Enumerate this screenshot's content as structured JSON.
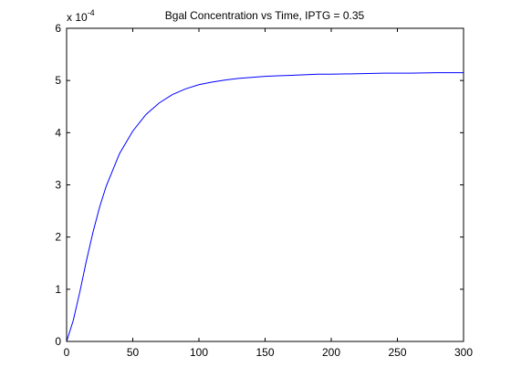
{
  "chart_data": {
    "type": "line",
    "title": "Bgal Concentration vs Time, IPTG = 0.35",
    "xlabel": "",
    "ylabel": "",
    "xlim": [
      0,
      300
    ],
    "ylim": [
      0,
      6
    ],
    "y_exponent_prefix": "x 10",
    "y_exponent": "-4",
    "xticks": [
      0,
      50,
      100,
      150,
      200,
      250,
      300
    ],
    "yticks": [
      0,
      1,
      2,
      3,
      4,
      5,
      6
    ],
    "xtick_labels": [
      "0",
      "50",
      "100",
      "150",
      "200",
      "250",
      "300"
    ],
    "ytick_labels": [
      "0",
      "1",
      "2",
      "3",
      "4",
      "5",
      "6"
    ],
    "grid": false,
    "legend": "none",
    "series": [
      {
        "color": "#0000ff",
        "x": [
          0,
          5,
          10,
          15,
          20,
          25,
          30,
          40,
          50,
          60,
          70,
          80,
          90,
          100,
          110,
          120,
          130,
          140,
          150,
          160,
          170,
          180,
          190,
          200,
          220,
          240,
          260,
          280,
          300
        ],
        "y": [
          0,
          0.4,
          0.95,
          1.55,
          2.1,
          2.58,
          2.98,
          3.6,
          4.03,
          4.35,
          4.57,
          4.73,
          4.84,
          4.92,
          4.97,
          5.01,
          5.04,
          5.06,
          5.08,
          5.09,
          5.1,
          5.11,
          5.12,
          5.12,
          5.13,
          5.14,
          5.14,
          5.15,
          5.15
        ]
      }
    ]
  }
}
